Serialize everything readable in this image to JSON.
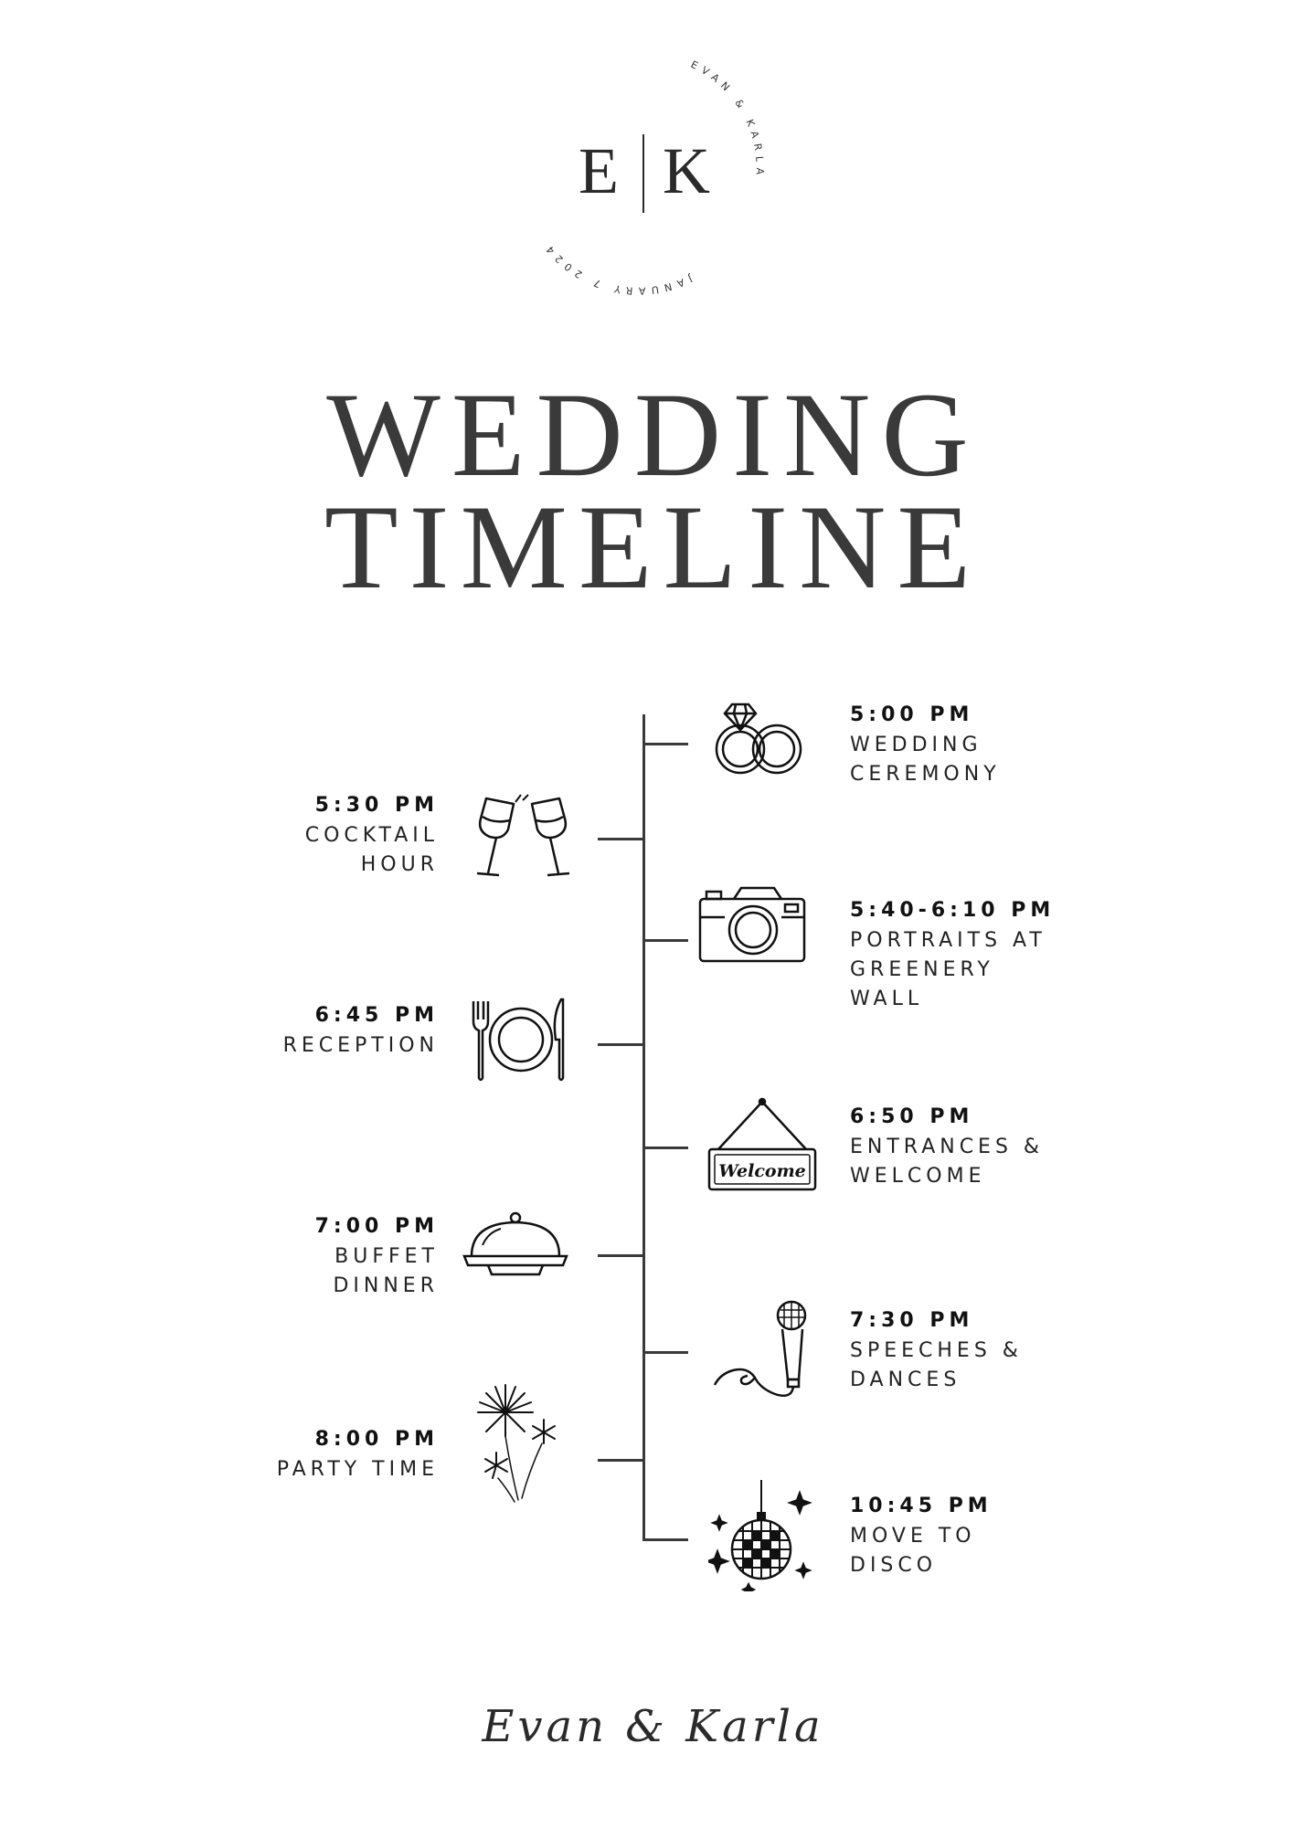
{
  "monogram": {
    "initial_left": "E",
    "initial_right": "K",
    "ring_top": "EVAN & KARLA",
    "ring_bottom": "JANUARY 7 2024"
  },
  "title": {
    "line1": "WEDDING",
    "line2": "TIMELINE"
  },
  "events": [
    {
      "time": "5:00 PM",
      "label": [
        "WEDDING",
        "CEREMONY"
      ],
      "icon": "rings-icon"
    },
    {
      "time": "5:30 PM",
      "label": [
        "COCKTAIL",
        "HOUR"
      ],
      "icon": "toasting-glasses-icon"
    },
    {
      "time": "5:40-6:10 PM",
      "label": [
        "PORTRAITS AT",
        "GREENERY",
        "WALL"
      ],
      "icon": "camera-icon"
    },
    {
      "time": "6:45 PM",
      "label": [
        "RECEPTION"
      ],
      "icon": "place-setting-icon"
    },
    {
      "time": "6:50 PM",
      "label": [
        "ENTRANCES &",
        "WELCOME"
      ],
      "icon": "welcome-sign-icon",
      "sign_text": "Welcome"
    },
    {
      "time": "7:00 PM",
      "label": [
        "BUFFET",
        "DINNER"
      ],
      "icon": "cloche-icon"
    },
    {
      "time": "7:30 PM",
      "label": [
        "SPEECHES &",
        "DANCES"
      ],
      "icon": "microphone-icon"
    },
    {
      "time": "8:00 PM",
      "label": [
        "PARTY TIME"
      ],
      "icon": "fireworks-icon"
    },
    {
      "time": "10:45 PM",
      "label": [
        "MOVE TO",
        "DISCO"
      ],
      "icon": "disco-ball-icon"
    }
  ],
  "signature": "Evan & Karla",
  "colors": {
    "ink": "#1e1e1e",
    "title": "#3a3a3a",
    "background": "#ffffff"
  }
}
